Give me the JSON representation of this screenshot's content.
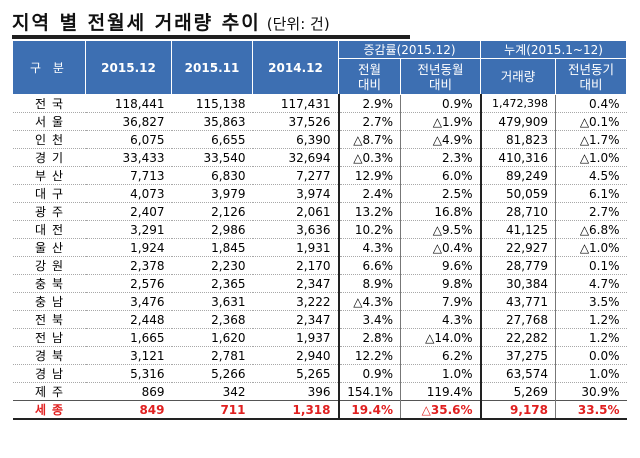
{
  "title": "지역 별 전월세 거래량 추이",
  "unit": "(단위: 건)",
  "header": {
    "category": "구 분",
    "col_2015_12": "2015.12",
    "col_2015_11": "2015.11",
    "col_2014_12": "2014.12",
    "change_group": "증감률(2015.12)",
    "change_mom": "전월\n대비",
    "change_yoy": "전년동월\n대비",
    "cum_group": "누계(2015.1~12)",
    "cum_volume": "거래량",
    "cum_yoy": "전년동기\n대비"
  },
  "rows": [
    {
      "region": "전국",
      "v1512": "118,441",
      "v1511": "115,138",
      "v1412": "117,431",
      "mom": "2.9%",
      "yoy": "0.9%",
      "cum": "1,472,398",
      "cum_yoy": "0.4%"
    },
    {
      "region": "서울",
      "v1512": "36,827",
      "v1511": "35,863",
      "v1412": "37,526",
      "mom": "2.7%",
      "yoy": "△1.9%",
      "cum": "479,909",
      "cum_yoy": "△0.1%"
    },
    {
      "region": "인천",
      "v1512": "6,075",
      "v1511": "6,655",
      "v1412": "6,390",
      "mom": "△8.7%",
      "yoy": "△4.9%",
      "cum": "81,823",
      "cum_yoy": "△1.7%"
    },
    {
      "region": "경기",
      "v1512": "33,433",
      "v1511": "33,540",
      "v1412": "32,694",
      "mom": "△0.3%",
      "yoy": "2.3%",
      "cum": "410,316",
      "cum_yoy": "△1.0%"
    },
    {
      "region": "부산",
      "v1512": "7,713",
      "v1511": "6,830",
      "v1412": "7,277",
      "mom": "12.9%",
      "yoy": "6.0%",
      "cum": "89,249",
      "cum_yoy": "4.5%"
    },
    {
      "region": "대구",
      "v1512": "4,073",
      "v1511": "3,979",
      "v1412": "3,974",
      "mom": "2.4%",
      "yoy": "2.5%",
      "cum": "50,059",
      "cum_yoy": "6.1%"
    },
    {
      "region": "광주",
      "v1512": "2,407",
      "v1511": "2,126",
      "v1412": "2,061",
      "mom": "13.2%",
      "yoy": "16.8%",
      "cum": "28,710",
      "cum_yoy": "2.7%"
    },
    {
      "region": "대전",
      "v1512": "3,291",
      "v1511": "2,986",
      "v1412": "3,636",
      "mom": "10.2%",
      "yoy": "△9.5%",
      "cum": "41,125",
      "cum_yoy": "△6.8%"
    },
    {
      "region": "울산",
      "v1512": "1,924",
      "v1511": "1,845",
      "v1412": "1,931",
      "mom": "4.3%",
      "yoy": "△0.4%",
      "cum": "22,927",
      "cum_yoy": "△1.0%"
    },
    {
      "region": "강원",
      "v1512": "2,378",
      "v1511": "2,230",
      "v1412": "2,170",
      "mom": "6.6%",
      "yoy": "9.6%",
      "cum": "28,779",
      "cum_yoy": "0.1%"
    },
    {
      "region": "충북",
      "v1512": "2,576",
      "v1511": "2,365",
      "v1412": "2,347",
      "mom": "8.9%",
      "yoy": "9.8%",
      "cum": "30,384",
      "cum_yoy": "4.7%"
    },
    {
      "region": "충남",
      "v1512": "3,476",
      "v1511": "3,631",
      "v1412": "3,222",
      "mom": "△4.3%",
      "yoy": "7.9%",
      "cum": "43,771",
      "cum_yoy": "3.5%"
    },
    {
      "region": "전북",
      "v1512": "2,448",
      "v1511": "2,368",
      "v1412": "2,347",
      "mom": "3.4%",
      "yoy": "4.3%",
      "cum": "27,768",
      "cum_yoy": "1.2%"
    },
    {
      "region": "전남",
      "v1512": "1,665",
      "v1511": "1,620",
      "v1412": "1,937",
      "mom": "2.8%",
      "yoy": "△14.0%",
      "cum": "22,282",
      "cum_yoy": "1.2%"
    },
    {
      "region": "경북",
      "v1512": "3,121",
      "v1511": "2,781",
      "v1412": "2,940",
      "mom": "12.2%",
      "yoy": "6.2%",
      "cum": "37,275",
      "cum_yoy": "0.0%"
    },
    {
      "region": "경남",
      "v1512": "5,316",
      "v1511": "5,266",
      "v1412": "5,265",
      "mom": "0.9%",
      "yoy": "1.0%",
      "cum": "63,574",
      "cum_yoy": "1.0%"
    },
    {
      "region": "제주",
      "v1512": "869",
      "v1511": "342",
      "v1412": "396",
      "mom": "154.1%",
      "yoy": "119.4%",
      "cum": "5,269",
      "cum_yoy": "30.9%"
    },
    {
      "region": "세종",
      "v1512": "849",
      "v1511": "711",
      "v1412": "1,318",
      "mom": "19.4%",
      "yoy": "△35.6%",
      "cum": "9,178",
      "cum_yoy": "33.5%"
    }
  ],
  "colors": {
    "header_bg": "#3d6fb2",
    "header_text": "#ffffff",
    "total_row_text": "#e02020"
  }
}
